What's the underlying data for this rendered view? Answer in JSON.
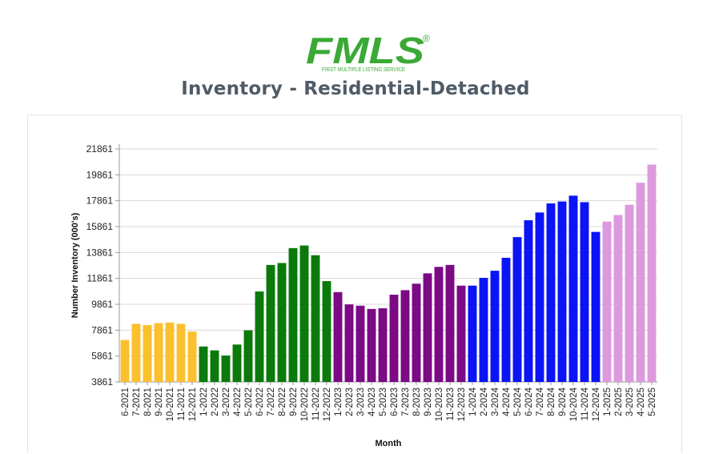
{
  "logo": {
    "text": "FMLS",
    "registered": "®",
    "tagline": "FIRST MULTIPLE LISTING SERVICE",
    "color": "#3aa935"
  },
  "page_title": "Inventory - Residential-Detached",
  "chart_data": {
    "type": "bar",
    "title": "Inventory - Residential-Detached",
    "xlabel": "Month",
    "ylabel": "Number Inventory (000's)",
    "ylim": [
      3861,
      21861
    ],
    "yticks": [
      3861,
      5861,
      7861,
      9861,
      11861,
      13861,
      15861,
      17861,
      19861,
      21861
    ],
    "grid": true,
    "categories": [
      "6-2021",
      "7-2021",
      "8-2021",
      "9-2021",
      "10-2021",
      "11-2021",
      "12-2021",
      "1-2022",
      "2-2022",
      "3-2022",
      "4-2022",
      "5-2022",
      "6-2022",
      "7-2022",
      "8-2022",
      "9-2022",
      "10-2022",
      "11-2022",
      "12-2022",
      "1-2023",
      "2-2023",
      "3-2023",
      "4-2023",
      "5-2023",
      "6-2023",
      "7-2023",
      "8-2023",
      "9-2023",
      "10-2023",
      "11-2023",
      "12-2023",
      "1-2024",
      "2-2024",
      "3-2024",
      "4-2024",
      "5-2024",
      "6-2024",
      "7-2024",
      "8-2024",
      "9-2024",
      "10-2024",
      "11-2024",
      "12-2024",
      "1-2025",
      "2-2025",
      "3-2025",
      "4-2025",
      "5-2025"
    ],
    "values": [
      7100,
      8350,
      8250,
      8400,
      8450,
      8350,
      7750,
      6600,
      6300,
      5900,
      6750,
      7850,
      10850,
      12900,
      13050,
      14200,
      14400,
      13650,
      11650,
      10800,
      9850,
      9750,
      9500,
      9550,
      10600,
      10950,
      11450,
      12250,
      12750,
      12900,
      11300,
      11300,
      11900,
      12450,
      13450,
      15050,
      16350,
      16950,
      17650,
      17800,
      18250,
      17750,
      15450,
      16250,
      16750,
      17550,
      19250,
      20650
    ],
    "year_colors": {
      "2021": "#fbc02d",
      "2022": "#0a7a0a",
      "2023": "#7b0a84",
      "2024": "#0a14f5",
      "2025": "#dd99dd"
    }
  }
}
